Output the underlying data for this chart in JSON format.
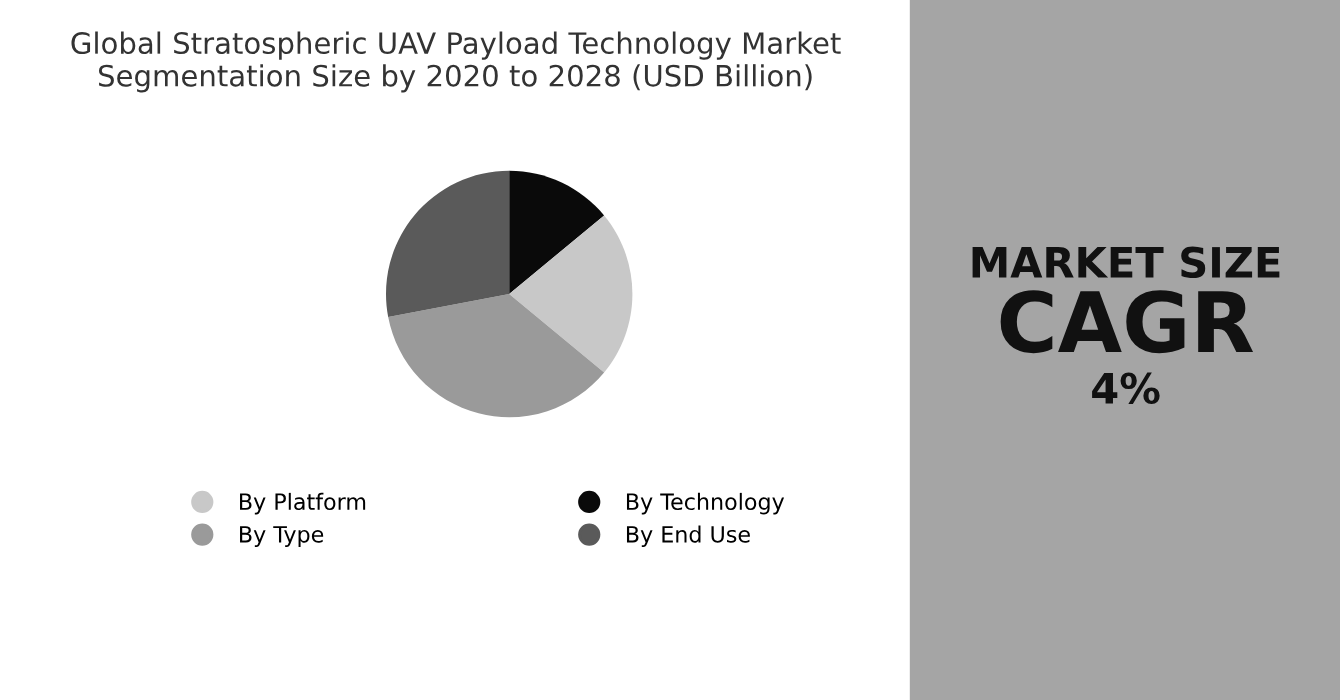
{
  "chart_data": {
    "type": "pie",
    "title": "Global Stratospheric UAV Payload Technology Market\nSegmentation Size by 2020 to 2028 (USD Billion)",
    "categories": [
      "By Technology",
      "By Platform",
      "By Type",
      "By End Use"
    ],
    "values": [
      14,
      22,
      36,
      28
    ],
    "colors": [
      "#0a0a0a",
      "#c8c8c8",
      "#9a9a9a",
      "#5a5a5a"
    ],
    "legend": "bottom",
    "annotations": [
      "MARKET SIZE",
      "CAGR",
      "4%"
    ]
  }
}
